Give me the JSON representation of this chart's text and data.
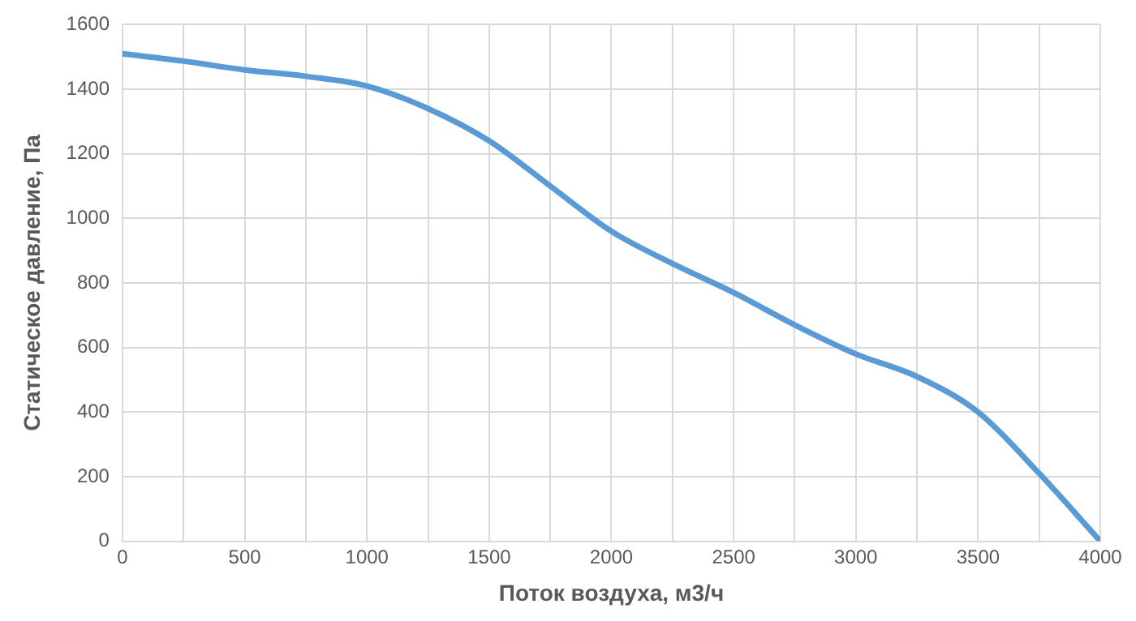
{
  "chart_data": {
    "type": "line",
    "xlabel": "Поток воздуха, м3/ч",
    "ylabel": "Статическое давление, Па",
    "x": [
      0,
      250,
      500,
      750,
      1000,
      1250,
      1500,
      1750,
      2000,
      2250,
      2500,
      2750,
      3000,
      3250,
      3500,
      3750,
      4000
    ],
    "series": [
      {
        "color": "#5b9bd5",
        "values": [
          1510,
          1487,
          1460,
          1440,
          1410,
          1340,
          1240,
          1100,
          960,
          860,
          770,
          670,
          580,
          510,
          400,
          210,
          0
        ]
      }
    ],
    "xlim": [
      0,
      4000
    ],
    "xticks": [
      0,
      {
        "value": 250,
        "label": null
      },
      500,
      {
        "value": 750,
        "label": null
      },
      1000,
      {
        "value": 1250,
        "label": null
      },
      1500,
      {
        "value": 1750,
        "label": null
      },
      2000,
      {
        "value": 2250,
        "label": null
      },
      2500,
      {
        "value": 2750,
        "label": null
      },
      3000,
      {
        "value": 3250,
        "label": null
      },
      3500,
      {
        "value": 3750,
        "label": null
      },
      4000
    ],
    "ylim": [
      0,
      1600
    ],
    "yticks": [
      0,
      200,
      400,
      600,
      800,
      1000,
      1200,
      1400,
      1600
    ],
    "grid": true,
    "legend": false,
    "marker": "none",
    "line_style": "solid"
  }
}
